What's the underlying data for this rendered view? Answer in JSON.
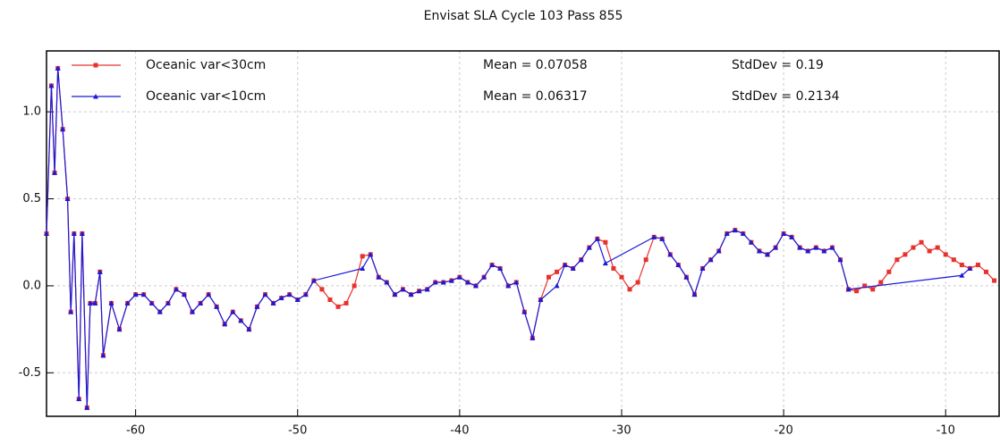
{
  "chart_data": {
    "type": "line",
    "title": "Envisat SLA Cycle 103 Pass 855",
    "xlim": [
      -65.5,
      -6.7
    ],
    "ylim": [
      -0.75,
      1.35
    ],
    "xticks": [
      -60,
      -50,
      -40,
      -30,
      -20,
      -10
    ],
    "yticks": [
      -0.5,
      {
        "value": 0,
        "label": "0.0"
      },
      0.5,
      {
        "value": 1,
        "label": "1.0"
      }
    ],
    "grid": true,
    "series": [
      {
        "name": "Oceanic var<30cm",
        "color": "#e8302c",
        "marker": "square",
        "mean_label": "Mean = 0.07058",
        "stddev_label": "StdDev = 0.19",
        "x": [
          -65.5,
          -65.2,
          -65,
          -64.8,
          -64.5,
          -64.2,
          -64,
          -63.8,
          -63.5,
          -63.3,
          -63,
          -62.8,
          -62.5,
          -62.2,
          -62,
          -61.5,
          -61,
          -60.5,
          -60,
          -59.5,
          -59,
          -58.5,
          -58,
          -57.5,
          -57,
          -56.5,
          -56,
          -55.5,
          -55,
          -54.5,
          -54,
          -53.5,
          -53,
          -52.5,
          -52,
          -51.5,
          -51,
          -50.5,
          -50,
          -49.5,
          -49,
          -48.5,
          -48,
          -47.5,
          -47,
          -46.5,
          -46,
          -45.5,
          -45,
          -44.5,
          -44,
          -43.5,
          -43,
          -42.5,
          -42,
          -41.5,
          -41,
          -40.5,
          -40,
          -39.5,
          -39,
          -38.5,
          -38,
          -37.5,
          -37,
          -36.5,
          -36,
          -35.5,
          -35,
          -34.5,
          -34,
          -33.5,
          -33,
          -32.5,
          -32,
          -31.5,
          -31,
          -30.5,
          -30,
          -29.5,
          -29,
          -28.5,
          -28,
          -27.5,
          -27,
          -26.5,
          -26,
          -25.5,
          -25,
          -24.5,
          -24,
          -23.5,
          -23,
          -22.5,
          -22,
          -21.5,
          -21,
          -20.5,
          -20,
          -19.5,
          -19,
          -18.5,
          -18,
          -17.5,
          -17,
          -16.5,
          -16,
          -15.5,
          -15,
          -14.5,
          -14,
          -13.5,
          -13,
          -12.5,
          -12,
          -11.5,
          -11,
          -10.5,
          -10,
          -9.5,
          -9,
          -8.5,
          -8,
          -7.5,
          -7
        ],
        "values": [
          0.3,
          1.15,
          0.65,
          1.25,
          0.9,
          0.5,
          -0.15,
          0.3,
          -0.65,
          0.3,
          -0.7,
          -0.1,
          -0.1,
          0.08,
          -0.4,
          -0.1,
          -0.25,
          -0.1,
          -0.05,
          -0.05,
          -0.1,
          -0.15,
          -0.1,
          -0.02,
          -0.05,
          -0.15,
          -0.1,
          -0.05,
          -0.12,
          -0.22,
          -0.15,
          -0.2,
          -0.25,
          -0.12,
          -0.05,
          -0.1,
          -0.07,
          -0.05,
          -0.08,
          -0.05,
          0.03,
          -0.02,
          -0.08,
          -0.12,
          -0.1,
          0,
          0.17,
          0.18,
          0.05,
          0.02,
          -0.05,
          -0.02,
          -0.05,
          -0.03,
          -0.02,
          0.02,
          0.02,
          0.03,
          0.05,
          0.02,
          0,
          0.05,
          0.12,
          0.1,
          0,
          0.02,
          -0.15,
          -0.3,
          -0.08,
          0.05,
          0.08,
          0.12,
          0.1,
          0.15,
          0.22,
          0.27,
          0.25,
          0.1,
          0.05,
          -0.02,
          0.02,
          0.15,
          0.28,
          0.27,
          0.18,
          0.12,
          0.05,
          -0.05,
          0.1,
          0.15,
          0.2,
          0.3,
          0.32,
          0.3,
          0.25,
          0.2,
          0.18,
          0.22,
          0.3,
          0.28,
          0.22,
          0.2,
          0.22,
          0.2,
          0.22,
          0.15,
          -0.02,
          -0.03,
          0,
          -0.02,
          0.02,
          0.08,
          0.15,
          0.18,
          0.22,
          0.25,
          0.2,
          0.22,
          0.18,
          0.15,
          0.12,
          0.1,
          0.12,
          0.08,
          0.03
        ]
      },
      {
        "name": "Oceanic var<10cm",
        "color": "#1a1ad8",
        "marker": "triangle",
        "mean_label": "Mean = 0.06317",
        "stddev_label": "StdDev = 0.2134",
        "x": [
          -65.5,
          -65.2,
          -65,
          -64.8,
          -64.5,
          -64.2,
          -64,
          -63.8,
          -63.5,
          -63.3,
          -63,
          -62.8,
          -62.5,
          -62.2,
          -62,
          -61.5,
          -61,
          -60.5,
          -60,
          -59.5,
          -59,
          -58.5,
          -58,
          -57.5,
          -57,
          -56.5,
          -56,
          -55.5,
          -55,
          -54.5,
          -54,
          -53.5,
          -53,
          -52.5,
          -52,
          -51.5,
          -51,
          -50.5,
          -50,
          -49.5,
          -49,
          -46,
          -45.5,
          -45,
          -44.5,
          -44,
          -43.5,
          -43,
          -42.5,
          -42,
          -41.5,
          -41,
          -40.5,
          -40,
          -39.5,
          -39,
          -38.5,
          -38,
          -37.5,
          -37,
          -36.5,
          -36,
          -35.5,
          -35,
          -34,
          -33.5,
          -33,
          -32.5,
          -32,
          -31.5,
          -31,
          -28,
          -27.5,
          -27,
          -26.5,
          -26,
          -25.5,
          -25,
          -24.5,
          -24,
          -23.5,
          -23,
          -22.5,
          -22,
          -21.5,
          -21,
          -20.5,
          -20,
          -19.5,
          -19,
          -18.5,
          -18,
          -17.5,
          -17,
          -16.5,
          -16,
          -9,
          -8.5
        ],
        "values": [
          0.3,
          1.15,
          0.65,
          1.25,
          0.9,
          0.5,
          -0.15,
          0.3,
          -0.65,
          0.3,
          -0.7,
          -0.1,
          -0.1,
          0.08,
          -0.4,
          -0.1,
          -0.25,
          -0.1,
          -0.05,
          -0.05,
          -0.1,
          -0.15,
          -0.1,
          -0.02,
          -0.05,
          -0.15,
          -0.1,
          -0.05,
          -0.12,
          -0.22,
          -0.15,
          -0.2,
          -0.25,
          -0.12,
          -0.05,
          -0.1,
          -0.07,
          -0.05,
          -0.08,
          -0.05,
          0.03,
          0.1,
          0.18,
          0.05,
          0.02,
          -0.05,
          -0.02,
          -0.05,
          -0.03,
          -0.02,
          0.02,
          0.02,
          0.03,
          0.05,
          0.02,
          0,
          0.05,
          0.12,
          0.1,
          0,
          0.02,
          -0.15,
          -0.3,
          -0.08,
          0.0,
          0.12,
          0.1,
          0.15,
          0.22,
          0.27,
          0.13,
          0.28,
          0.27,
          0.18,
          0.12,
          0.05,
          -0.05,
          0.1,
          0.15,
          0.2,
          0.3,
          0.32,
          0.3,
          0.25,
          0.2,
          0.18,
          0.22,
          0.3,
          0.28,
          0.22,
          0.2,
          0.22,
          0.2,
          0.22,
          0.15,
          -0.02,
          0.06,
          0.1
        ]
      }
    ]
  }
}
